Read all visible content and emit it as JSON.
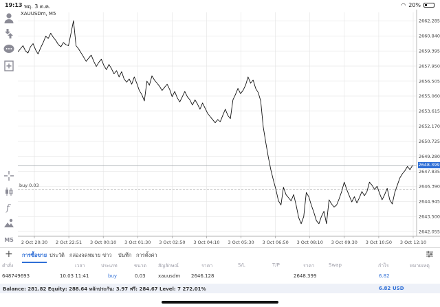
{
  "status_bar": {
    "time": "19:13",
    "date": "พฤ. 3 ต.ค.",
    "battery": "20%"
  },
  "left_toolbar": {
    "icons": [
      "user-icon",
      "trade-icon",
      "chat-icon",
      "new-order-icon",
      "crosshair-icon",
      "candles-icon",
      "function-icon",
      "objects-icon"
    ],
    "timeframe": "M5"
  },
  "chart": {
    "symbol": "XAUUSDm, M5",
    "buy_line_label": "buy 0.03",
    "current_price": "2648.399",
    "colors": {
      "line": "#111111",
      "grid": "#e3e3e3",
      "current_price_line": "#9aa0a6",
      "buy_line": "#aaaaaa",
      "badge": "#2f6fd6"
    }
  },
  "chart_data": {
    "type": "line",
    "title": "XAUUSDm, M5",
    "y_ticks": [
      "2662.285",
      "2660.840",
      "2659.395",
      "2657.950",
      "2656.505",
      "2655.060",
      "2653.615",
      "2652.170",
      "2650.725",
      "2649.280",
      "2647.835",
      "2646.390",
      "2644.945",
      "2643.500",
      "2642.055"
    ],
    "x_ticks": [
      "2 Oct 20:30",
      "2 Oct 22:51",
      "3 Oct 00:10",
      "3 Oct 01:30",
      "3 Oct 02:50",
      "3 Oct 04:10",
      "3 Oct 05:30",
      "3 Oct 06:50",
      "3 Oct 08:10",
      "3 Oct 09:30",
      "3 Oct 10:50",
      "3 Oct 12:10"
    ],
    "ylim": [
      2641.6,
      2663.1
    ],
    "current_price": 2648.399,
    "buy_price": 2646.128,
    "values": [
      2659.3,
      2659.6,
      2659.9,
      2659.4,
      2659.2,
      2659.8,
      2660.1,
      2659.5,
      2659.1,
      2659.7,
      2660.2,
      2660.8,
      2660.6,
      2661.1,
      2660.7,
      2660.4,
      2660.0,
      2659.8,
      2660.2,
      2660.0,
      2659.9,
      2661.1,
      2662.3,
      2659.9,
      2659.6,
      2659.2,
      2658.8,
      2658.4,
      2658.7,
      2659.0,
      2658.4,
      2657.9,
      2658.3,
      2658.6,
      2658.0,
      2657.6,
      2658.1,
      2657.7,
      2657.2,
      2657.5,
      2656.9,
      2657.4,
      2656.7,
      2656.4,
      2656.7,
      2656.2,
      2656.9,
      2656.3,
      2655.6,
      2655.2,
      2654.6,
      2656.5,
      2656.1,
      2657.0,
      2656.6,
      2656.3,
      2656.0,
      2655.6,
      2655.9,
      2656.2,
      2655.7,
      2655.0,
      2655.5,
      2654.9,
      2654.5,
      2655.0,
      2655.5,
      2655.0,
      2654.7,
      2654.2,
      2654.7,
      2654.3,
      2653.8,
      2654.4,
      2653.9,
      2653.4,
      2653.1,
      2652.8,
      2652.5,
      2652.8,
      2652.6,
      2653.2,
      2653.8,
      2653.2,
      2652.9,
      2654.7,
      2655.2,
      2655.8,
      2655.3,
      2655.6,
      2656.1,
      2656.9,
      2656.3,
      2656.6,
      2655.8,
      2655.4,
      2654.6,
      2652.1,
      2650.6,
      2649.2,
      2648.0,
      2647.0,
      2646.1,
      2645.0,
      2644.6,
      2646.3,
      2645.6,
      2645.3,
      2645.0,
      2645.6,
      2644.6,
      2643.4,
      2642.8,
      2643.5,
      2645.8,
      2645.4,
      2644.6,
      2643.9,
      2643.1,
      2642.8,
      2643.5,
      2644.0,
      2642.8,
      2645.1,
      2644.7,
      2644.4,
      2644.6,
      2645.2,
      2645.9,
      2646.8,
      2646.1,
      2645.5,
      2644.9,
      2645.4,
      2644.8,
      2645.3,
      2645.9,
      2645.5,
      2645.9,
      2646.8,
      2646.5,
      2646.1,
      2646.4,
      2645.7,
      2645.1,
      2645.6,
      2646.2,
      2645.1,
      2644.7,
      2645.8,
      2646.5,
      2647.2,
      2647.6,
      2647.9,
      2648.3,
      2648.0,
      2648.4
    ]
  },
  "bottom_panel": {
    "add_button": "+",
    "tabs": [
      "การซื้อขาย",
      "ประวัติ",
      "กล่องจดหมาย",
      "ข่าว",
      "บันทึก",
      "การตั้งค่า"
    ],
    "active_tab": 0,
    "columns": [
      "คำสั่ง",
      "เวลา",
      "ประเภท",
      "ขนาด",
      "สัญลักษณ์",
      "ราคา",
      "S/L",
      "T/P",
      "ราคา",
      "Swap",
      "กำไร",
      "หมายเหตุ"
    ],
    "positions": [
      {
        "ticket": "648749693",
        "time": "10.03 11:41",
        "type": "buy",
        "volume": "0.03",
        "symbol": "xauusdm",
        "open_price": "2646.128",
        "sl": "",
        "tp": "",
        "price": "2648.399",
        "swap": "",
        "profit": "6.82",
        "comment": ""
      }
    ],
    "summary": {
      "text": "Balance: 281.82 Equity: 288.64 หลักประกัน: 3.97 ฟรี: 284.67 Level: 7 272.01%",
      "profit": "6.82",
      "currency": "USD"
    }
  }
}
